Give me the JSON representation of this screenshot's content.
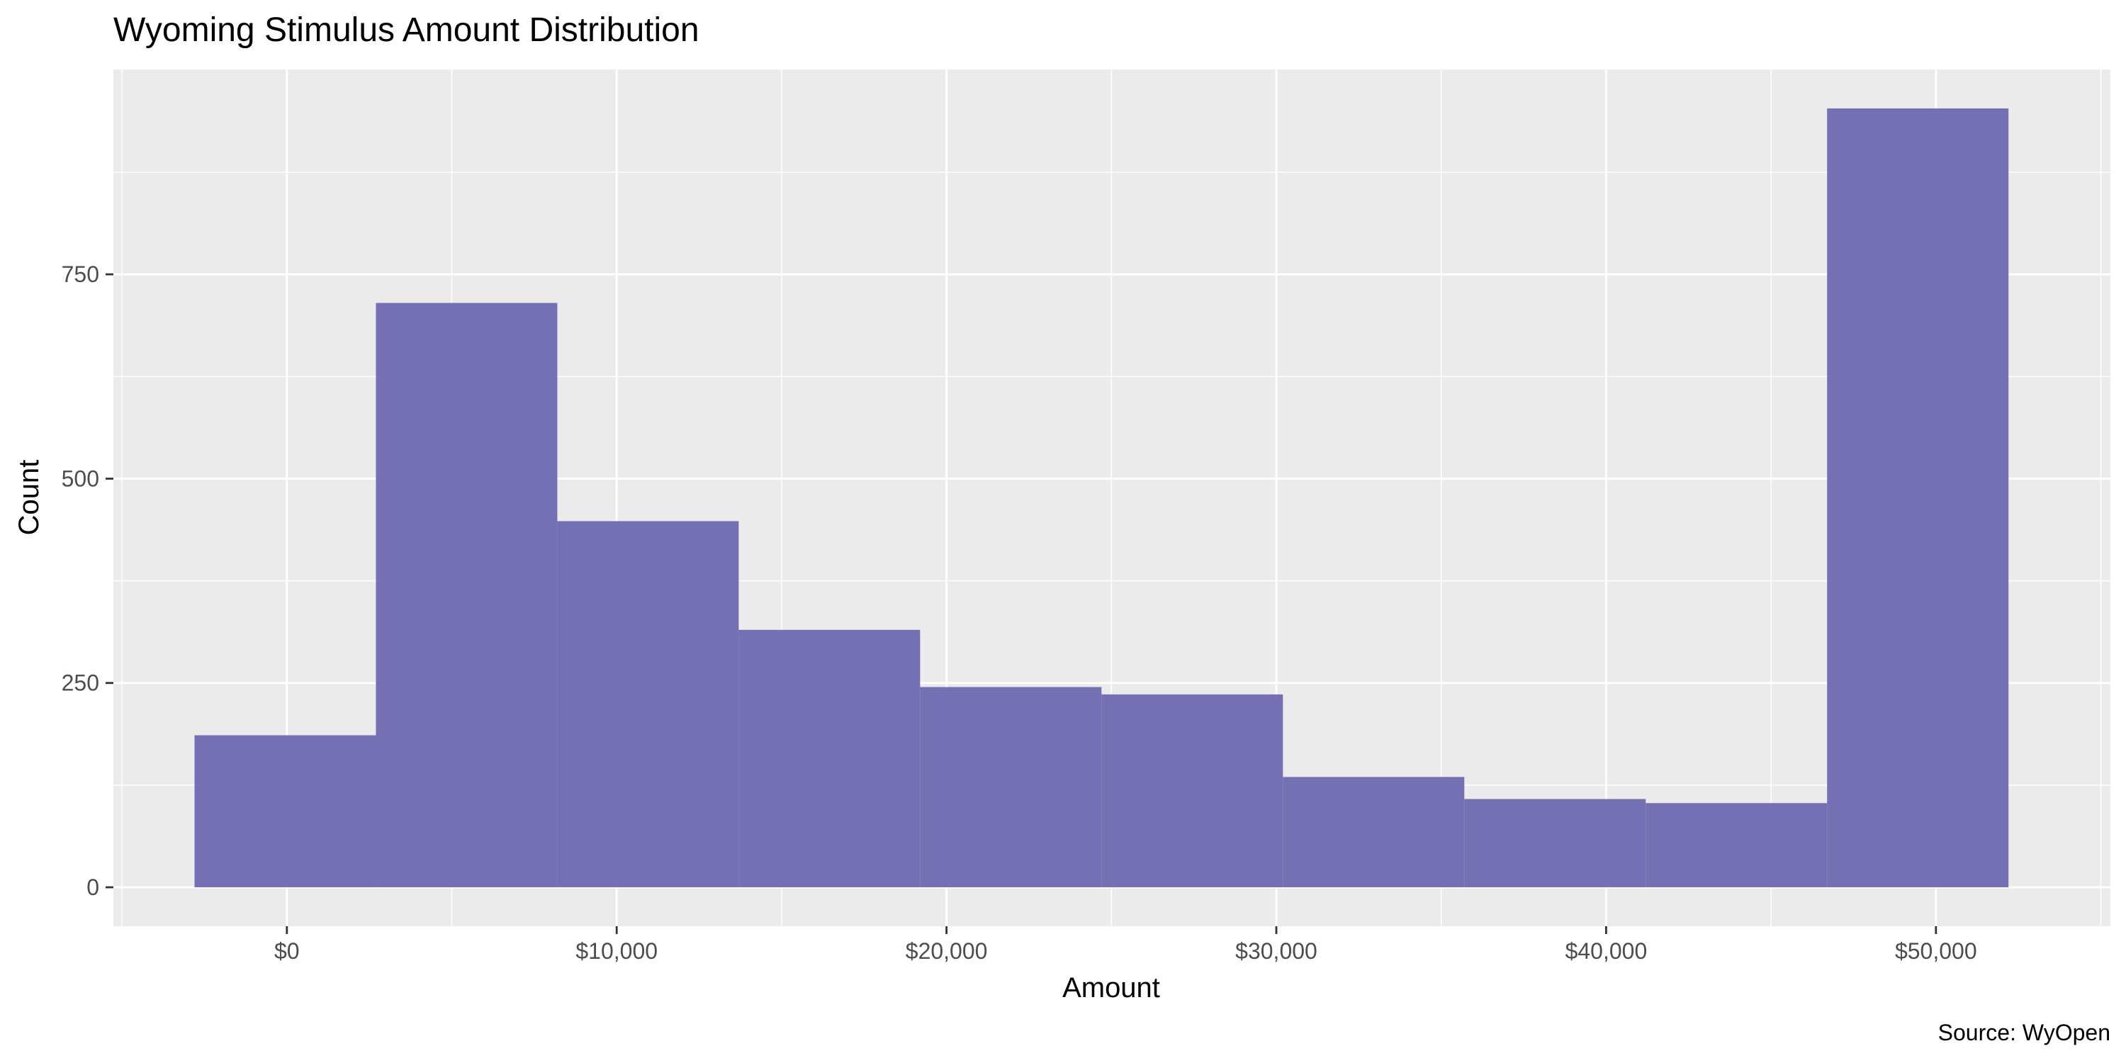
{
  "chart_data": {
    "type": "bar",
    "subtype": "histogram",
    "title": "Wyoming Stimulus Amount Distribution",
    "xlabel": "Amount",
    "ylabel": "Count",
    "caption": "Source: WyOpen",
    "bins": [
      {
        "x0": -2800,
        "x1": 2700,
        "count": 186
      },
      {
        "x0": 2700,
        "x1": 8200,
        "count": 715
      },
      {
        "x0": 8200,
        "x1": 13700,
        "count": 448
      },
      {
        "x0": 13700,
        "x1": 19200,
        "count": 315
      },
      {
        "x0": 19200,
        "x1": 24700,
        "count": 245
      },
      {
        "x0": 24700,
        "x1": 30200,
        "count": 236
      },
      {
        "x0": 30200,
        "x1": 35700,
        "count": 135
      },
      {
        "x0": 35700,
        "x1": 41200,
        "count": 108
      },
      {
        "x0": 41200,
        "x1": 46700,
        "count": 103
      },
      {
        "x0": 46700,
        "x1": 52200,
        "count": 953
      }
    ],
    "xlim": [
      -5260,
      55290
    ],
    "ylim": [
      -47.65,
      1000.7
    ],
    "x_ticks": [
      0,
      10000,
      20000,
      30000,
      40000,
      50000
    ],
    "x_tick_labels": [
      "$0",
      "$10,000",
      "$20,000",
      "$30,000",
      "$40,000",
      "$50,000"
    ],
    "y_ticks": [
      0,
      250,
      500,
      750
    ],
    "y_tick_labels": [
      "0",
      "250",
      "500",
      "750"
    ],
    "grid": true,
    "bar_color": "#7570b3",
    "panel_color": "#ebebeb",
    "grid_color": "#ffffff"
  }
}
